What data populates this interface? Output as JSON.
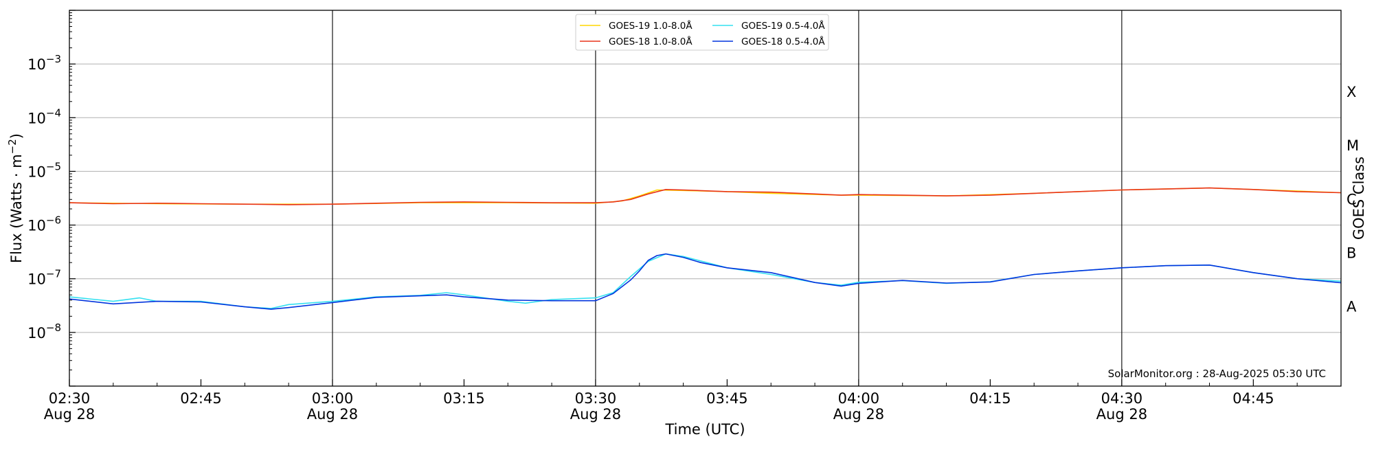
{
  "chart_data": {
    "type": "line",
    "title": "",
    "xlabel": "Time (UTC)",
    "ylabel": "Flux (Watts · m⁻²)",
    "y_right_label": "GOES Class",
    "y_scale": "log",
    "ylim": [
      1e-09,
      0.01
    ],
    "xlim": [
      "2025-08-28 02:30",
      "2025-08-28 04:55"
    ],
    "grid": "horizontal at decades, vertical at half hours",
    "legend_position": "top-center",
    "watermark": "SolarMonitor.org : 28-Aug-2025 05:30 UTC",
    "y_ticks": [
      {
        "value": 1e-08,
        "base": "10",
        "exp": "−8"
      },
      {
        "value": 1e-07,
        "base": "10",
        "exp": "−7"
      },
      {
        "value": 1e-06,
        "base": "10",
        "exp": "−6"
      },
      {
        "value": 1e-05,
        "base": "10",
        "exp": "−5"
      },
      {
        "value": 0.0001,
        "base": "10",
        "exp": "−4"
      },
      {
        "value": 0.001,
        "base": "10",
        "exp": "−3"
      }
    ],
    "x_ticks": [
      {
        "time": "02:30",
        "line1": "02:30",
        "line2": "Aug 28"
      },
      {
        "time": "02:45",
        "line1": "02:45",
        "line2": ""
      },
      {
        "time": "03:00",
        "line1": "03:00",
        "line2": "Aug 28"
      },
      {
        "time": "03:15",
        "line1": "03:15",
        "line2": ""
      },
      {
        "time": "03:30",
        "line1": "03:30",
        "line2": "Aug 28"
      },
      {
        "time": "03:45",
        "line1": "03:45",
        "line2": ""
      },
      {
        "time": "04:00",
        "line1": "04:00",
        "line2": "Aug 28"
      },
      {
        "time": "04:15",
        "line1": "04:15",
        "line2": ""
      },
      {
        "time": "04:30",
        "line1": "04:30",
        "line2": "Aug 28"
      },
      {
        "time": "04:45",
        "line1": "04:45",
        "line2": ""
      }
    ],
    "goes_classes": [
      {
        "label": "A",
        "level": 3e-08
      },
      {
        "label": "B",
        "level": 3e-07
      },
      {
        "label": "C",
        "level": 3e-06
      },
      {
        "label": "M",
        "level": 3e-05
      },
      {
        "label": "X",
        "level": 0.0003
      }
    ],
    "series": [
      {
        "name": "GOES-19 1.0-8.0Å",
        "color": "#ffd700",
        "x": [
          "02:30",
          "02:40",
          "02:50",
          "03:00",
          "03:10",
          "03:20",
          "03:30",
          "03:33",
          "03:35",
          "03:37",
          "03:40",
          "03:45",
          "03:50",
          "03:58",
          "04:00",
          "04:10",
          "04:20",
          "04:30",
          "04:40",
          "04:50",
          "04:55"
        ],
        "y": [
          2.6e-06,
          2.5e-06,
          2.45e-06,
          2.45e-06,
          2.6e-06,
          2.6e-06,
          2.55e-06,
          2.8e-06,
          3.5e-06,
          4.5e-06,
          4.4e-06,
          4.2e-06,
          3.9e-06,
          3.6e-06,
          3.6e-06,
          3.5e-06,
          3.9e-06,
          4.5e-06,
          4.9e-06,
          4.3e-06,
          4e-06
        ]
      },
      {
        "name": "GOES-18 1.0-8.0Å",
        "color": "#e8331a",
        "x": [
          "02:30",
          "02:35",
          "02:40",
          "02:45",
          "02:50",
          "02:55",
          "03:00",
          "03:05",
          "03:10",
          "03:15",
          "03:20",
          "03:25",
          "03:30",
          "03:32",
          "03:34",
          "03:36",
          "03:38",
          "03:40",
          "03:45",
          "03:50",
          "03:55",
          "03:58",
          "04:00",
          "04:05",
          "04:10",
          "04:15",
          "04:20",
          "04:25",
          "04:30",
          "04:35",
          "04:40",
          "04:45",
          "04:50",
          "04:55"
        ],
        "y": [
          2.6e-06,
          2.5e-06,
          2.55e-06,
          2.5e-06,
          2.45e-06,
          2.4e-06,
          2.45e-06,
          2.55e-06,
          2.65e-06,
          2.7e-06,
          2.65e-06,
          2.6e-06,
          2.6e-06,
          2.7e-06,
          3e-06,
          3.8e-06,
          4.6e-06,
          4.5e-06,
          4.2e-06,
          4.1e-06,
          3.8e-06,
          3.6e-06,
          3.7e-06,
          3.6e-06,
          3.5e-06,
          3.6e-06,
          3.9e-06,
          4.2e-06,
          4.5e-06,
          4.7e-06,
          4.9e-06,
          4.6e-06,
          4.2e-06,
          4e-06
        ]
      },
      {
        "name": "GOES-19 0.5-4.0Å",
        "color": "#33e0f0",
        "x": [
          "02:30",
          "02:35",
          "02:38",
          "02:40",
          "02:45",
          "02:50",
          "02:53",
          "02:55",
          "03:00",
          "03:05",
          "03:10",
          "03:13",
          "03:15",
          "03:20",
          "03:22",
          "03:25",
          "03:30",
          "03:32",
          "03:34",
          "03:36",
          "03:38",
          "03:40",
          "03:45",
          "03:50",
          "03:55",
          "03:58",
          "04:00",
          "04:05",
          "04:10",
          "04:15",
          "04:20",
          "04:25",
          "04:30",
          "04:35",
          "04:40",
          "04:45",
          "04:50",
          "04:55"
        ],
        "y": [
          4.6e-08,
          3.8e-08,
          4.4e-08,
          3.8e-08,
          3.8e-08,
          3e-08,
          2.8e-08,
          3.3e-08,
          3.8e-08,
          4.6e-08,
          4.9e-08,
          5.5e-08,
          5e-08,
          3.8e-08,
          3.5e-08,
          4.1e-08,
          4.4e-08,
          5.5e-08,
          1.1e-07,
          2.1e-07,
          2.9e-07,
          2.6e-07,
          1.6e-07,
          1.2e-07,
          8.5e-08,
          7.6e-08,
          8.6e-08,
          9.2e-08,
          8.2e-08,
          8.8e-08,
          1.2e-07,
          1.4e-07,
          1.6e-07,
          1.75e-07,
          1.8e-07,
          1.3e-07,
          1e-07,
          9e-08
        ]
      },
      {
        "name": "GOES-18 0.5-4.0Å",
        "color": "#0033dd",
        "x": [
          "02:30",
          "02:35",
          "02:40",
          "02:45",
          "02:50",
          "02:53",
          "02:55",
          "03:00",
          "03:05",
          "03:10",
          "03:13",
          "03:15",
          "03:20",
          "03:25",
          "03:30",
          "03:32",
          "03:34",
          "03:35",
          "03:36",
          "03:37",
          "03:38",
          "03:40",
          "03:42",
          "03:45",
          "03:50",
          "03:55",
          "03:58",
          "04:00",
          "04:05",
          "04:10",
          "04:15",
          "04:20",
          "04:25",
          "04:30",
          "04:35",
          "04:40",
          "04:45",
          "04:50",
          "04:55"
        ],
        "y": [
          4.2e-08,
          3.4e-08,
          3.8e-08,
          3.7e-08,
          3e-08,
          2.7e-08,
          2.9e-08,
          3.6e-08,
          4.5e-08,
          4.8e-08,
          5e-08,
          4.6e-08,
          4e-08,
          3.9e-08,
          3.9e-08,
          5.3e-08,
          9.5e-08,
          1.4e-07,
          2.2e-07,
          2.7e-07,
          2.9e-07,
          2.5e-07,
          2e-07,
          1.6e-07,
          1.3e-07,
          8.5e-08,
          7.3e-08,
          8.2e-08,
          9.3e-08,
          8.3e-08,
          8.7e-08,
          1.2e-07,
          1.4e-07,
          1.6e-07,
          1.75e-07,
          1.8e-07,
          1.3e-07,
          1e-07,
          8.4e-08
        ]
      }
    ]
  }
}
